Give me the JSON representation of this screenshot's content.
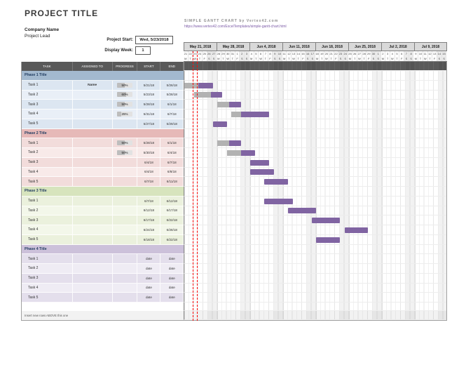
{
  "header": {
    "project_title": "PROJECT TITLE",
    "company_name": "Company Name",
    "project_lead": "Project Lead",
    "template_brand": "SIMPLE GANTT CHART by Vertex42.com",
    "template_url": "https://www.vertex42.com/ExcelTemplates/simple-gantt-chart.html",
    "project_start_label": "Project Start:",
    "project_start_value": "Wed, 5/23/2018",
    "display_week_label": "Display Week:",
    "display_week_value": "1"
  },
  "table": {
    "columns": [
      "TASK",
      "ASSIGNED TO",
      "PROGRESS",
      "START",
      "END"
    ]
  },
  "timeline": {
    "start_date": "5/21/2018",
    "num_weeks": 8,
    "days": 56,
    "week_labels": [
      "May 21, 2018",
      "May 28, 2018",
      "Jun 4, 2018",
      "Jun 11, 2018",
      "Jun 18, 2018",
      "Jun 25, 2018",
      "Jul 2, 2018",
      "Jul 9, 2018"
    ],
    "today_day_index": 2
  },
  "colors": {
    "bar": "#8064a2",
    "bar_complete": "#b2b2b2",
    "today_line": "#ff0000",
    "header_row": "#595959"
  },
  "phases": [
    {
      "title": "Phase 1 Title",
      "head_color": "#a3b9cf",
      "row_color": "#dce6f1",
      "row_alt_color": "#e9eff7",
      "tasks": [
        {
          "task": "Task 1",
          "assigned": "Name",
          "progress": "50%",
          "start": "5/21/18",
          "end": "5/26/18"
        },
        {
          "task": "Task 2",
          "assigned": "",
          "progress": "60%",
          "start": "5/23/18",
          "end": "5/28/18"
        },
        {
          "task": "Task 3",
          "assigned": "",
          "progress": "50%",
          "start": "5/28/18",
          "end": "6/1/18"
        },
        {
          "task": "Task 4",
          "assigned": "",
          "progress": "25%",
          "start": "5/31/18",
          "end": "6/7/18"
        },
        {
          "task": "Task 5",
          "assigned": "",
          "progress": "",
          "start": "5/27/18",
          "end": "5/29/18"
        }
      ]
    },
    {
      "title": "Phase 2 Title",
      "head_color": "#e6b9b8",
      "row_color": "#f2dcdb",
      "row_alt_color": "#f8eae9",
      "tasks": [
        {
          "task": "Task 1",
          "assigned": "",
          "progress": "50%",
          "start": "5/28/18",
          "end": "6/1/18"
        },
        {
          "task": "Task 2",
          "assigned": "",
          "progress": "50%",
          "start": "5/30/18",
          "end": "6/4/18"
        },
        {
          "task": "Task 3",
          "assigned": "",
          "progress": "",
          "start": "6/4/18",
          "end": "6/7/18"
        },
        {
          "task": "Task 4",
          "assigned": "",
          "progress": "",
          "start": "6/4/18",
          "end": "6/8/18"
        },
        {
          "task": "Task 5",
          "assigned": "",
          "progress": "",
          "start": "6/7/18",
          "end": "6/11/18"
        }
      ]
    },
    {
      "title": "Phase 3 Title",
      "head_color": "#d7e4bd",
      "row_color": "#ebf1dd",
      "row_alt_color": "#f3f7ea",
      "tasks": [
        {
          "task": "Task 1",
          "assigned": "",
          "progress": "",
          "start": "6/7/18",
          "end": "6/12/18"
        },
        {
          "task": "Task 2",
          "assigned": "",
          "progress": "",
          "start": "6/12/18",
          "end": "6/17/18"
        },
        {
          "task": "Task 3",
          "assigned": "",
          "progress": "",
          "start": "6/17/18",
          "end": "6/22/18"
        },
        {
          "task": "Task 4",
          "assigned": "",
          "progress": "",
          "start": "6/24/18",
          "end": "6/28/18"
        },
        {
          "task": "Task 5",
          "assigned": "",
          "progress": "",
          "start": "6/18/18",
          "end": "6/22/18"
        }
      ]
    },
    {
      "title": "Phase 4 Title",
      "head_color": "#ccc1da",
      "row_color": "#e4dfec",
      "row_alt_color": "#efecf4",
      "tasks": [
        {
          "task": "Task 1",
          "assigned": "",
          "progress": "",
          "start": "date",
          "end": "date"
        },
        {
          "task": "Task 2",
          "assigned": "",
          "progress": "",
          "start": "date",
          "end": "date"
        },
        {
          "task": "Task 3",
          "assigned": "",
          "progress": "",
          "start": "date",
          "end": "date"
        },
        {
          "task": "Task 4",
          "assigned": "",
          "progress": "",
          "start": "date",
          "end": "date"
        },
        {
          "task": "Task 5",
          "assigned": "",
          "progress": "",
          "start": "date",
          "end": "date"
        }
      ]
    }
  ],
  "footer": {
    "note": "Insert new rows ABOVE this one"
  }
}
